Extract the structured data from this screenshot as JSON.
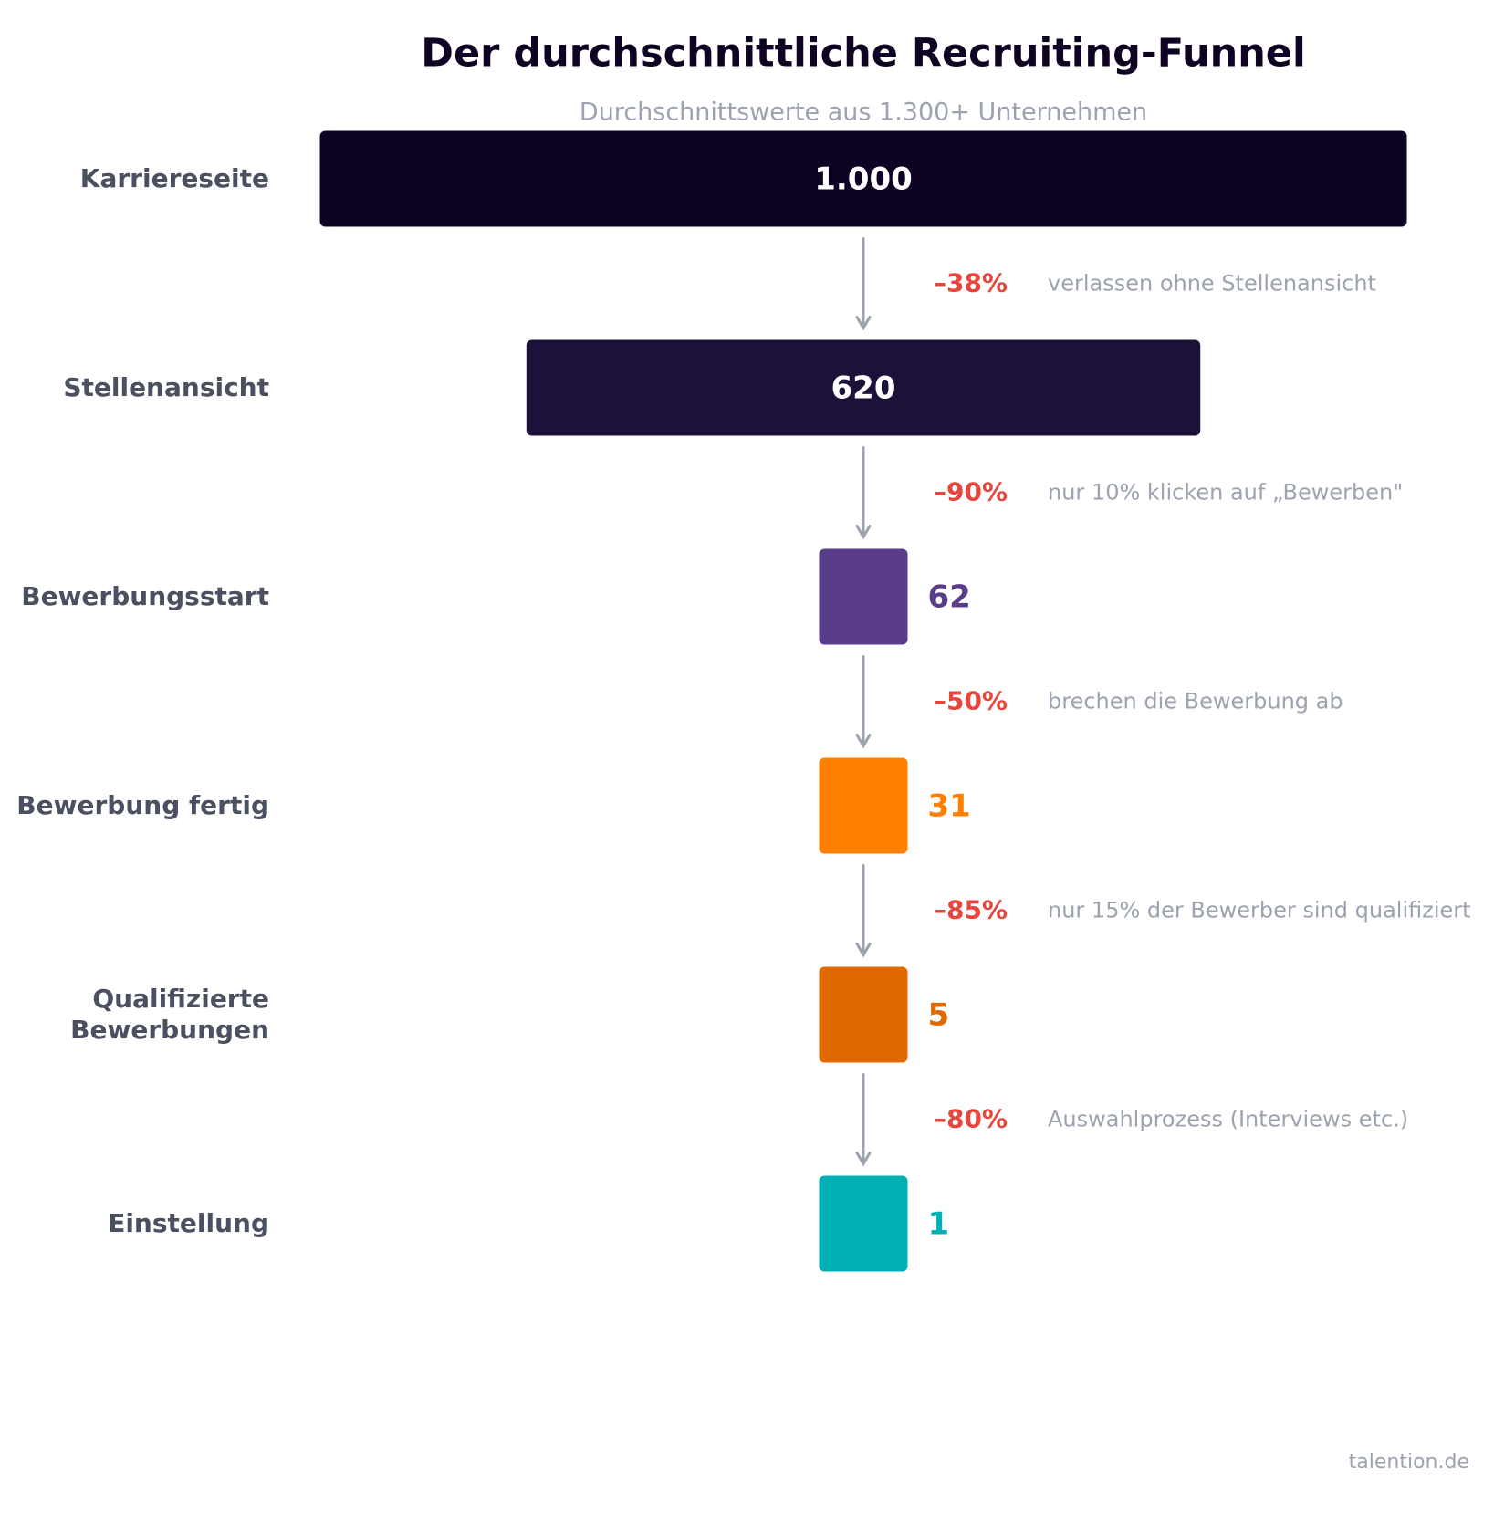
{
  "chart_data": {
    "type": "funnel",
    "title": "Der durchschnittliche Recruiting-Funnel",
    "subtitle": "Durchschnittswerte aus 1.300+ Unternehmen",
    "categories": [
      "Karriereseite",
      "Stellenansicht",
      "Bewerbungsstart",
      "Bewerbung fertig",
      "Qualifizierte Bewerbungen",
      "Einstellung"
    ],
    "values": [
      1000,
      620,
      62,
      31,
      5,
      1
    ],
    "value_labels": [
      "1.000",
      "620",
      "62",
      "31",
      "5",
      "1"
    ],
    "colors": [
      "#0e0322",
      "#1c1138",
      "#5a3d8a",
      "#ff8000",
      "#e06a00",
      "#00b0b5"
    ],
    "drops": [
      {
        "value": -38,
        "label": "–38%",
        "note": "verlassen ohne Stellenansicht"
      },
      {
        "value": -90,
        "label": "–90%",
        "note": "nur 10% klicken auf „Bewerben\""
      },
      {
        "value": -50,
        "label": "–50%",
        "note": "brechen die Bewerbung ab"
      },
      {
        "value": -85,
        "label": "–85%",
        "note": "nur 15% der Bewerber sind qualifiziert"
      },
      {
        "value": -80,
        "label": "–80%",
        "note": "Auswahlprozess (Interviews etc.)"
      }
    ],
    "source": "talention.de"
  }
}
